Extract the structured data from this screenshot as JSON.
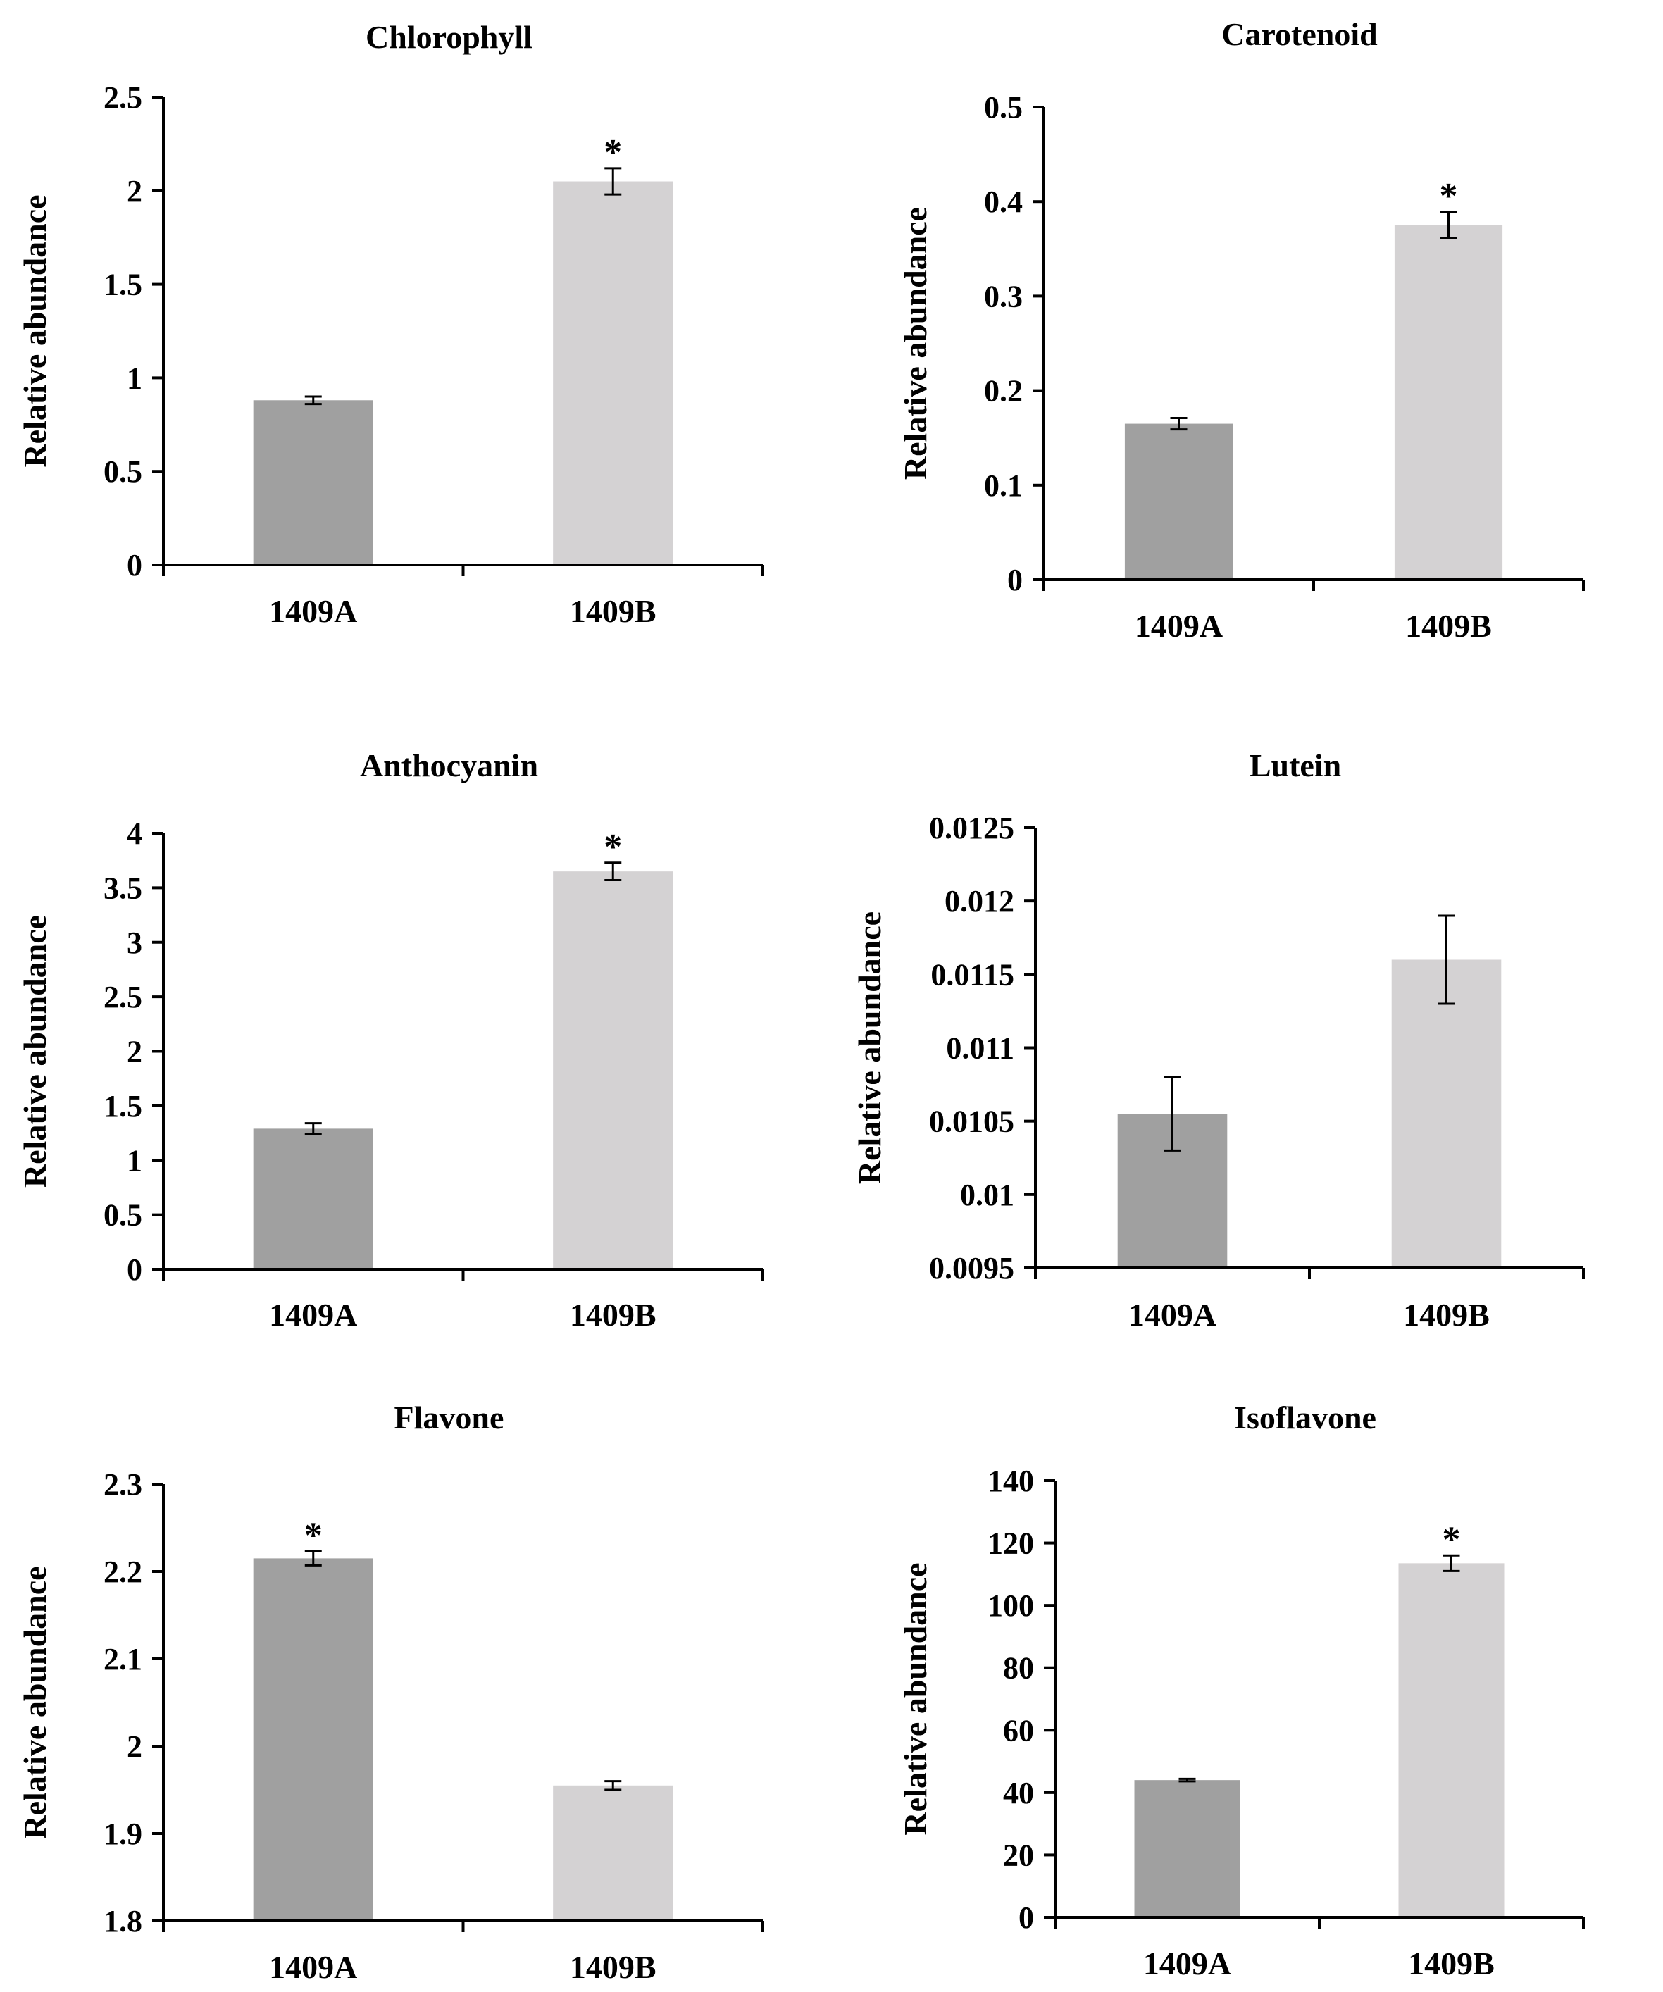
{
  "chart_data": [
    {
      "type": "bar",
      "title": "Chlorophyll",
      "ylabel": "Relative abundance",
      "categories": [
        "1409A",
        "1409B"
      ],
      "values": [
        0.88,
        2.05
      ],
      "errors": [
        0.02,
        0.07
      ],
      "significant": [
        false,
        true
      ],
      "significance_marker": "*",
      "ylim": [
        0,
        2.5
      ],
      "ticks": [
        "0",
        "0.5",
        "1",
        "1.5",
        "2",
        "2.5"
      ],
      "colors": [
        "#a0a0a0",
        "#d4d2d3"
      ]
    },
    {
      "type": "bar",
      "title": "Carotenoid",
      "ylabel": "Relative abundance",
      "categories": [
        "1409A",
        "1409B"
      ],
      "values": [
        0.165,
        0.375
      ],
      "errors": [
        0.006,
        0.014
      ],
      "significant": [
        false,
        true
      ],
      "significance_marker": "*",
      "ylim": [
        0,
        0.5
      ],
      "ticks": [
        "0",
        "0.1",
        "0.2",
        "0.3",
        "0.4",
        "0.5"
      ],
      "colors": [
        "#a0a0a0",
        "#d4d2d3"
      ]
    },
    {
      "type": "bar",
      "title": "Anthocyanin",
      "ylabel": "Relative abundance",
      "categories": [
        "1409A",
        "1409B"
      ],
      "values": [
        1.29,
        3.65
      ],
      "errors": [
        0.05,
        0.08
      ],
      "significant": [
        false,
        true
      ],
      "significance_marker": "*",
      "ylim": [
        0,
        4
      ],
      "ticks": [
        "0",
        "0.5",
        "1",
        "1.5",
        "2",
        "2.5",
        "3",
        "3.5",
        "4"
      ],
      "colors": [
        "#a0a0a0",
        "#d4d2d3"
      ]
    },
    {
      "type": "bar",
      "title": "Lutein",
      "ylabel": "Relative abundance",
      "categories": [
        "1409A",
        "1409B"
      ],
      "values": [
        0.01055,
        0.0116
      ],
      "errors": [
        0.00025,
        0.0003
      ],
      "significant": [
        false,
        false
      ],
      "significance_marker": "*",
      "ylim": [
        0.0095,
        0.0125
      ],
      "ticks": [
        "0.0095",
        "0.01",
        "0.0105",
        "0.011",
        "0.0115",
        "0.012",
        "0.0125"
      ],
      "colors": [
        "#a0a0a0",
        "#d4d2d3"
      ]
    },
    {
      "type": "bar",
      "title": "Flavone",
      "ylabel": "Relative abundance",
      "categories": [
        "1409A",
        "1409B"
      ],
      "values": [
        2.215,
        1.955
      ],
      "errors": [
        0.008,
        0.005
      ],
      "significant": [
        true,
        false
      ],
      "significance_marker": "*",
      "ylim": [
        1.8,
        2.3
      ],
      "ticks": [
        "1.8",
        "1.9",
        "2",
        "2.1",
        "2.2",
        "2.3"
      ],
      "colors": [
        "#a0a0a0",
        "#d4d2d3"
      ]
    },
    {
      "type": "bar",
      "title": "Isoflavone",
      "ylabel": "Relative abundance",
      "categories": [
        "1409A",
        "1409B"
      ],
      "values": [
        44,
        113.5
      ],
      "errors": [
        0.4,
        2.5
      ],
      "significant": [
        false,
        true
      ],
      "significance_marker": "*",
      "ylim": [
        0,
        140
      ],
      "ticks": [
        "0",
        "20",
        "40",
        "60",
        "80",
        "100",
        "120",
        "140"
      ],
      "colors": [
        "#a0a0a0",
        "#d4d2d3"
      ]
    }
  ]
}
